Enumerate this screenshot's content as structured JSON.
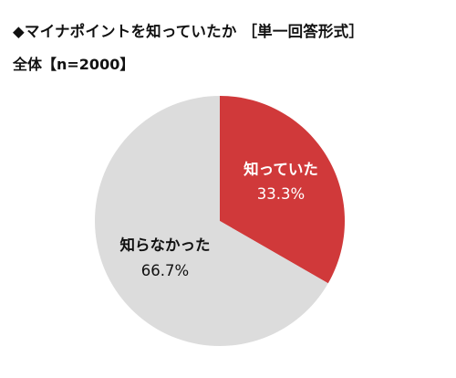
{
  "header": {
    "title": "◆マイナポイントを知っていたか ［単一回答形式］",
    "subtitle": "全体【n=2000】"
  },
  "colors": {
    "knew": "#d0393a",
    "did_not_know": "#dcdcdc",
    "knew_label": "#ffffff",
    "did_not_know_label": "#111111"
  },
  "chart_data": {
    "type": "pie",
    "title": "◆マイナポイントを知っていたか ［単一回答形式］",
    "subtitle": "全体【n=2000】",
    "categories": [
      "知っていた",
      "知らなかった"
    ],
    "values": [
      33.3,
      66.7
    ],
    "unit": "%",
    "labels": [
      {
        "category": "知っていた",
        "value_text": "33.3%"
      },
      {
        "category": "知らなかった",
        "value_text": "66.7%"
      }
    ],
    "start": "12 o'clock",
    "direction": "clockwise",
    "legend": "none"
  }
}
